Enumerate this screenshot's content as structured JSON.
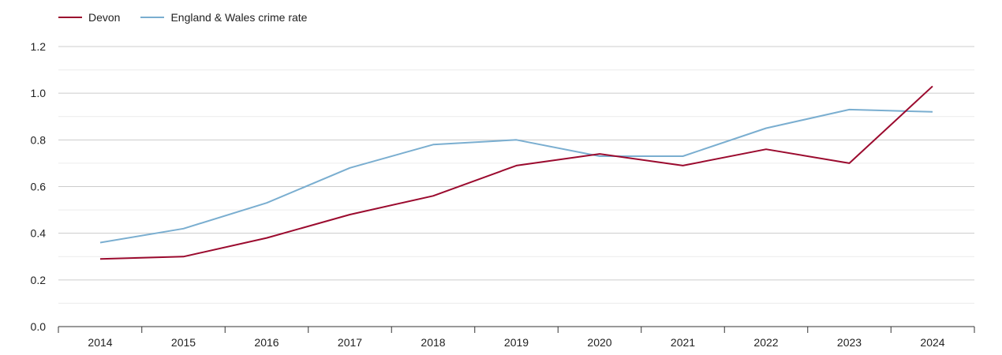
{
  "chart_data": {
    "type": "line",
    "title": "",
    "xlabel": "",
    "ylabel": "",
    "categories": [
      "2014",
      "2015",
      "2016",
      "2017",
      "2018",
      "2019",
      "2020",
      "2021",
      "2022",
      "2023",
      "2024"
    ],
    "ylim": [
      0,
      1.2
    ],
    "yticks": [
      "0.0",
      "0.2",
      "0.4",
      "0.6",
      "0.8",
      "1.0",
      "1.2"
    ],
    "grid": true,
    "legend_position": "top-left",
    "series": [
      {
        "name": "Devon",
        "color": "#9b0a2e",
        "values": [
          0.29,
          0.3,
          0.38,
          0.48,
          0.56,
          0.69,
          0.74,
          0.69,
          0.76,
          0.7,
          1.03
        ]
      },
      {
        "name": "England & Wales crime rate",
        "color": "#7aaed0",
        "values": [
          0.36,
          0.42,
          0.53,
          0.68,
          0.78,
          0.8,
          0.73,
          0.73,
          0.85,
          0.93,
          0.92
        ]
      }
    ]
  }
}
